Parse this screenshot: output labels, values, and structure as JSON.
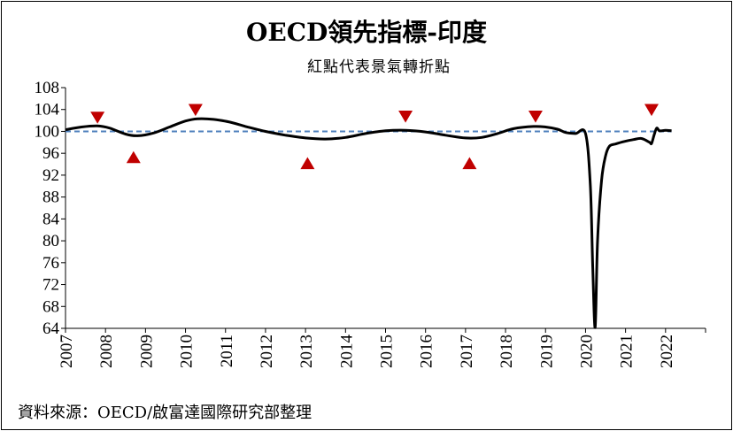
{
  "chart_data": {
    "type": "line",
    "title": "OECD領先指標-印度",
    "subtitle": "紅點代表景氣轉折點",
    "source": "資料來源：OECD/啟富達國際研究部整理",
    "xlabel": "",
    "ylabel": "",
    "ylim": [
      64,
      108
    ],
    "yticks": [
      64,
      68,
      72,
      76,
      80,
      84,
      88,
      92,
      96,
      100,
      104,
      108
    ],
    "xlim": [
      2007,
      2023
    ],
    "xticks": [
      "2007",
      "2008",
      "2009",
      "2010",
      "2011",
      "2012",
      "2013",
      "2014",
      "2015",
      "2016",
      "2017",
      "2018",
      "2019",
      "2020",
      "2021",
      "2022"
    ],
    "grid": false,
    "reference_line": {
      "y": 100,
      "style": "dashed",
      "color": "#4f81bd"
    },
    "series": [
      {
        "color": "#000000",
        "x": [
          2007.0,
          2007.4,
          2007.8,
          2008.1,
          2008.5,
          2008.8,
          2009.2,
          2009.6,
          2010.0,
          2010.3,
          2010.7,
          2011.1,
          2011.5,
          2012.0,
          2012.5,
          2013.0,
          2013.5,
          2014.0,
          2014.5,
          2015.0,
          2015.5,
          2016.0,
          2016.5,
          2017.0,
          2017.4,
          2017.8,
          2018.2,
          2018.7,
          2019.0,
          2019.3,
          2019.5,
          2019.75,
          2020.0,
          2020.12,
          2020.18,
          2020.24,
          2020.3,
          2020.4,
          2020.5,
          2020.6,
          2020.75,
          2021.0,
          2021.2,
          2021.4,
          2021.6,
          2021.65,
          2021.72,
          2021.78,
          2021.85,
          2022.0,
          2022.15
        ],
        "y": [
          100.3,
          100.8,
          101.0,
          100.6,
          99.5,
          99.2,
          99.7,
          100.8,
          101.9,
          102.3,
          102.2,
          101.7,
          100.9,
          100.0,
          99.3,
          98.8,
          98.6,
          98.9,
          99.6,
          100.1,
          100.2,
          99.9,
          99.3,
          98.8,
          98.9,
          99.6,
          100.5,
          100.9,
          100.8,
          100.4,
          99.8,
          99.6,
          99.6,
          90.0,
          75.0,
          64.2,
          80.0,
          91.0,
          95.5,
          97.3,
          97.7,
          98.2,
          98.5,
          98.7,
          98.0,
          97.8,
          99.5,
          100.6,
          100.1,
          100.2,
          100.1
        ]
      }
    ],
    "turning_points": {
      "color": "#c00000",
      "peaks": [
        {
          "x": 2007.8,
          "y": 102.5
        },
        {
          "x": 2010.25,
          "y": 103.9
        },
        {
          "x": 2015.5,
          "y": 102.7
        },
        {
          "x": 2018.75,
          "y": 102.7
        },
        {
          "x": 2021.65,
          "y": 103.9
        }
      ],
      "troughs": [
        {
          "x": 2008.7,
          "y": 95.3
        },
        {
          "x": 2013.05,
          "y": 94.2
        },
        {
          "x": 2017.1,
          "y": 94.2
        }
      ]
    }
  }
}
